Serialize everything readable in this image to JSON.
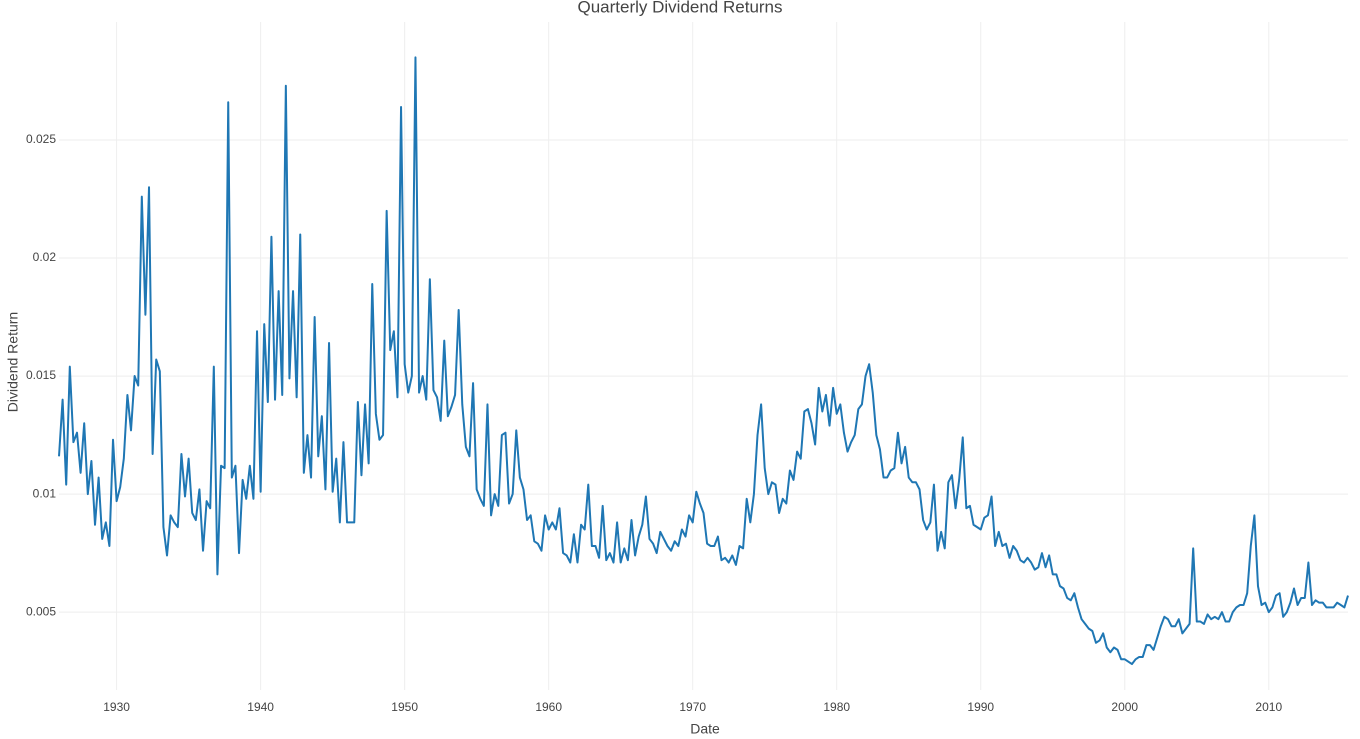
{
  "chart_data": {
    "type": "line",
    "title": "Quarterly Dividend Returns",
    "x_label": "Date",
    "y_label": "Dividend Return",
    "color": "#1f77b4",
    "grid": true,
    "xlim": [
      1926,
      2015.5
    ],
    "xticks": [
      1930,
      1940,
      1950,
      1960,
      1970,
      1980,
      1990,
      2000,
      2010
    ],
    "ylim": [
      0.0017,
      0.03
    ],
    "yticks": [
      0.005,
      0.01,
      0.015,
      0.02,
      0.025
    ],
    "x": [
      1926,
      1926.25,
      1926.5,
      1926.75,
      1927,
      1927.25,
      1927.5,
      1927.75,
      1928,
      1928.25,
      1928.5,
      1928.75,
      1929,
      1929.25,
      1929.5,
      1929.75,
      1930,
      1930.25,
      1930.5,
      1930.75,
      1931,
      1931.25,
      1931.5,
      1931.75,
      1932,
      1932.25,
      1932.5,
      1932.75,
      1933,
      1933.25,
      1933.5,
      1933.75,
      1934,
      1934.25,
      1934.5,
      1934.75,
      1935,
      1935.25,
      1935.5,
      1935.75,
      1936,
      1936.25,
      1936.5,
      1936.75,
      1937,
      1937.25,
      1937.5,
      1937.75,
      1938,
      1938.25,
      1938.5,
      1938.75,
      1939,
      1939.25,
      1939.5,
      1939.75,
      1940,
      1940.25,
      1940.5,
      1940.75,
      1941,
      1941.25,
      1941.5,
      1941.75,
      1942,
      1942.25,
      1942.5,
      1942.75,
      1943,
      1943.25,
      1943.5,
      1943.75,
      1944,
      1944.25,
      1944.5,
      1944.75,
      1945,
      1945.25,
      1945.5,
      1945.75,
      1946,
      1946.25,
      1946.5,
      1946.75,
      1947,
      1947.25,
      1947.5,
      1947.75,
      1948,
      1948.25,
      1948.5,
      1948.75,
      1949,
      1949.25,
      1949.5,
      1949.75,
      1950,
      1950.25,
      1950.5,
      1950.75,
      1951,
      1951.25,
      1951.5,
      1951.75,
      1952,
      1952.25,
      1952.5,
      1952.75,
      1953,
      1953.25,
      1953.5,
      1953.75,
      1954,
      1954.25,
      1954.5,
      1954.75,
      1955,
      1955.25,
      1955.5,
      1955.75,
      1956,
      1956.25,
      1956.5,
      1956.75,
      1957,
      1957.25,
      1957.5,
      1957.75,
      1958,
      1958.25,
      1958.5,
      1958.75,
      1959,
      1959.25,
      1959.5,
      1959.75,
      1960,
      1960.25,
      1960.5,
      1960.75,
      1961,
      1961.25,
      1961.5,
      1961.75,
      1962,
      1962.25,
      1962.5,
      1962.75,
      1963,
      1963.25,
      1963.5,
      1963.75,
      1964,
      1964.25,
      1964.5,
      1964.75,
      1965,
      1965.25,
      1965.5,
      1965.75,
      1966,
      1966.25,
      1966.5,
      1966.75,
      1967,
      1967.25,
      1967.5,
      1967.75,
      1968,
      1968.25,
      1968.5,
      1968.75,
      1969,
      1969.25,
      1969.5,
      1969.75,
      1970,
      1970.25,
      1970.5,
      1970.75,
      1971,
      1971.25,
      1971.5,
      1971.75,
      1972,
      1972.25,
      1972.5,
      1972.75,
      1973,
      1973.25,
      1973.5,
      1973.75,
      1974,
      1974.25,
      1974.5,
      1974.75,
      1975,
      1975.25,
      1975.5,
      1975.75,
      1976,
      1976.25,
      1976.5,
      1976.75,
      1977,
      1977.25,
      1977.5,
      1977.75,
      1978,
      1978.25,
      1978.5,
      1978.75,
      1979,
      1979.25,
      1979.5,
      1979.75,
      1980,
      1980.25,
      1980.5,
      1980.75,
      1981,
      1981.25,
      1981.5,
      1981.75,
      1982,
      1982.25,
      1982.5,
      1982.75,
      1983,
      1983.25,
      1983.5,
      1983.75,
      1984,
      1984.25,
      1984.5,
      1984.75,
      1985,
      1985.25,
      1985.5,
      1985.75,
      1986,
      1986.25,
      1986.5,
      1986.75,
      1987,
      1987.25,
      1987.5,
      1987.75,
      1988,
      1988.25,
      1988.5,
      1988.75,
      1989,
      1989.25,
      1989.5,
      1989.75,
      1990,
      1990.25,
      1990.5,
      1990.75,
      1991,
      1991.25,
      1991.5,
      1991.75,
      1992,
      1992.25,
      1992.5,
      1992.75,
      1993,
      1993.25,
      1993.5,
      1993.75,
      1994,
      1994.25,
      1994.5,
      1994.75,
      1995,
      1995.25,
      1995.5,
      1995.75,
      1996,
      1996.25,
      1996.5,
      1996.75,
      1997,
      1997.25,
      1997.5,
      1997.75,
      1998,
      1998.25,
      1998.5,
      1998.75,
      1999,
      1999.25,
      1999.5,
      1999.75,
      2000,
      2000.25,
      2000.5,
      2000.75,
      2001,
      2001.25,
      2001.5,
      2001.75,
      2002,
      2002.25,
      2002.5,
      2002.75,
      2003,
      2003.25,
      2003.5,
      2003.75,
      2004,
      2004.25,
      2004.5,
      2004.75,
      2005,
      2005.25,
      2005.5,
      2005.75,
      2006,
      2006.25,
      2006.5,
      2006.75,
      2007,
      2007.25,
      2007.5,
      2007.75,
      2008,
      2008.25,
      2008.5,
      2008.75,
      2009,
      2009.25,
      2009.5,
      2009.75,
      2010,
      2010.25,
      2010.5,
      2010.75,
      2011,
      2011.25,
      2011.5,
      2011.75,
      2012,
      2012.25,
      2012.5,
      2012.75,
      2013,
      2013.25,
      2013.5,
      2013.75,
      2014,
      2014.25,
      2014.5,
      2014.75,
      2015,
      2015.25,
      2015.5
    ],
    "values": [
      0.0116,
      0.014,
      0.0104,
      0.0154,
      0.0122,
      0.0126,
      0.0109,
      0.013,
      0.01,
      0.0114,
      0.0087,
      0.0107,
      0.0081,
      0.0088,
      0.0078,
      0.0123,
      0.0097,
      0.0103,
      0.0115,
      0.0142,
      0.0127,
      0.015,
      0.0146,
      0.0226,
      0.0176,
      0.023,
      0.0117,
      0.0157,
      0.0152,
      0.0086,
      0.0074,
      0.0091,
      0.0088,
      0.0086,
      0.0117,
      0.0099,
      0.0115,
      0.0092,
      0.0089,
      0.0102,
      0.0076,
      0.0097,
      0.0094,
      0.0154,
      0.0066,
      0.0112,
      0.0111,
      0.0266,
      0.0107,
      0.0112,
      0.0075,
      0.0106,
      0.0098,
      0.0112,
      0.0098,
      0.0169,
      0.0101,
      0.0172,
      0.0139,
      0.0209,
      0.014,
      0.0186,
      0.0142,
      0.0273,
      0.0149,
      0.0186,
      0.0141,
      0.021,
      0.0109,
      0.0125,
      0.0107,
      0.0175,
      0.0116,
      0.0133,
      0.0102,
      0.0164,
      0.0101,
      0.0115,
      0.0088,
      0.0122,
      0.0088,
      0.0088,
      0.0088,
      0.0139,
      0.0108,
      0.0138,
      0.0113,
      0.0189,
      0.0134,
      0.0123,
      0.0125,
      0.022,
      0.0161,
      0.0169,
      0.0141,
      0.0264,
      0.0155,
      0.0143,
      0.015,
      0.0285,
      0.0143,
      0.015,
      0.014,
      0.0191,
      0.0144,
      0.0141,
      0.0131,
      0.0165,
      0.0133,
      0.0137,
      0.0142,
      0.0178,
      0.0138,
      0.012,
      0.0116,
      0.0147,
      0.0102,
      0.0098,
      0.0095,
      0.0138,
      0.0091,
      0.01,
      0.0095,
      0.0125,
      0.0126,
      0.0096,
      0.01,
      0.0127,
      0.0107,
      0.0102,
      0.0089,
      0.0091,
      0.008,
      0.0079,
      0.0076,
      0.0091,
      0.0085,
      0.0088,
      0.0085,
      0.0094,
      0.0075,
      0.0074,
      0.0071,
      0.0083,
      0.0071,
      0.0087,
      0.0085,
      0.0104,
      0.0078,
      0.0078,
      0.0073,
      0.0095,
      0.0072,
      0.0075,
      0.0071,
      0.0088,
      0.0071,
      0.0077,
      0.0072,
      0.0089,
      0.0074,
      0.0082,
      0.0087,
      0.0099,
      0.0081,
      0.0079,
      0.0075,
      0.0084,
      0.0081,
      0.0078,
      0.0076,
      0.008,
      0.0078,
      0.0085,
      0.0082,
      0.0091,
      0.0088,
      0.0101,
      0.0096,
      0.0092,
      0.0079,
      0.0078,
      0.0078,
      0.0082,
      0.0072,
      0.0073,
      0.0071,
      0.0074,
      0.007,
      0.0078,
      0.0077,
      0.0098,
      0.0088,
      0.01,
      0.0125,
      0.0138,
      0.0111,
      0.01,
      0.0105,
      0.0104,
      0.0092,
      0.0098,
      0.0096,
      0.011,
      0.0106,
      0.0118,
      0.0115,
      0.0135,
      0.0136,
      0.013,
      0.0121,
      0.0145,
      0.0135,
      0.0142,
      0.0129,
      0.0145,
      0.0134,
      0.0138,
      0.0126,
      0.0118,
      0.0122,
      0.0125,
      0.0136,
      0.0138,
      0.015,
      0.0155,
      0.0143,
      0.0125,
      0.0119,
      0.0107,
      0.0107,
      0.011,
      0.0111,
      0.0126,
      0.0113,
      0.012,
      0.0107,
      0.0105,
      0.0105,
      0.0102,
      0.0089,
      0.0085,
      0.0088,
      0.0104,
      0.0076,
      0.0084,
      0.0077,
      0.0105,
      0.0108,
      0.0094,
      0.0106,
      0.0124,
      0.0094,
      0.0095,
      0.0087,
      0.0086,
      0.0085,
      0.009,
      0.0091,
      0.0099,
      0.0078,
      0.0084,
      0.0078,
      0.0079,
      0.0073,
      0.0078,
      0.0076,
      0.0072,
      0.0071,
      0.0073,
      0.0071,
      0.0068,
      0.0069,
      0.0075,
      0.0069,
      0.0074,
      0.0066,
      0.0066,
      0.0061,
      0.006,
      0.0056,
      0.0055,
      0.0058,
      0.0052,
      0.0047,
      0.0045,
      0.0043,
      0.0042,
      0.0037,
      0.0038,
      0.0041,
      0.0035,
      0.0033,
      0.0035,
      0.0034,
      0.003,
      0.003,
      0.0029,
      0.0028,
      0.003,
      0.0031,
      0.0031,
      0.0036,
      0.0036,
      0.0034,
      0.0039,
      0.0044,
      0.0048,
      0.0047,
      0.0044,
      0.0044,
      0.0047,
      0.0041,
      0.0043,
      0.0045,
      0.0077,
      0.0046,
      0.0046,
      0.0045,
      0.0049,
      0.0047,
      0.0048,
      0.0047,
      0.005,
      0.0046,
      0.0046,
      0.005,
      0.0052,
      0.0053,
      0.0053,
      0.0058,
      0.0078,
      0.0091,
      0.0061,
      0.0053,
      0.0054,
      0.005,
      0.0052,
      0.0057,
      0.0058,
      0.0048,
      0.005,
      0.0054,
      0.006,
      0.0053,
      0.0056,
      0.0056,
      0.0071,
      0.0053,
      0.0055,
      0.0054,
      0.0054,
      0.0052,
      0.0052,
      0.0052,
      0.0054,
      0.0053,
      0.0052,
      0.0057
    ]
  }
}
